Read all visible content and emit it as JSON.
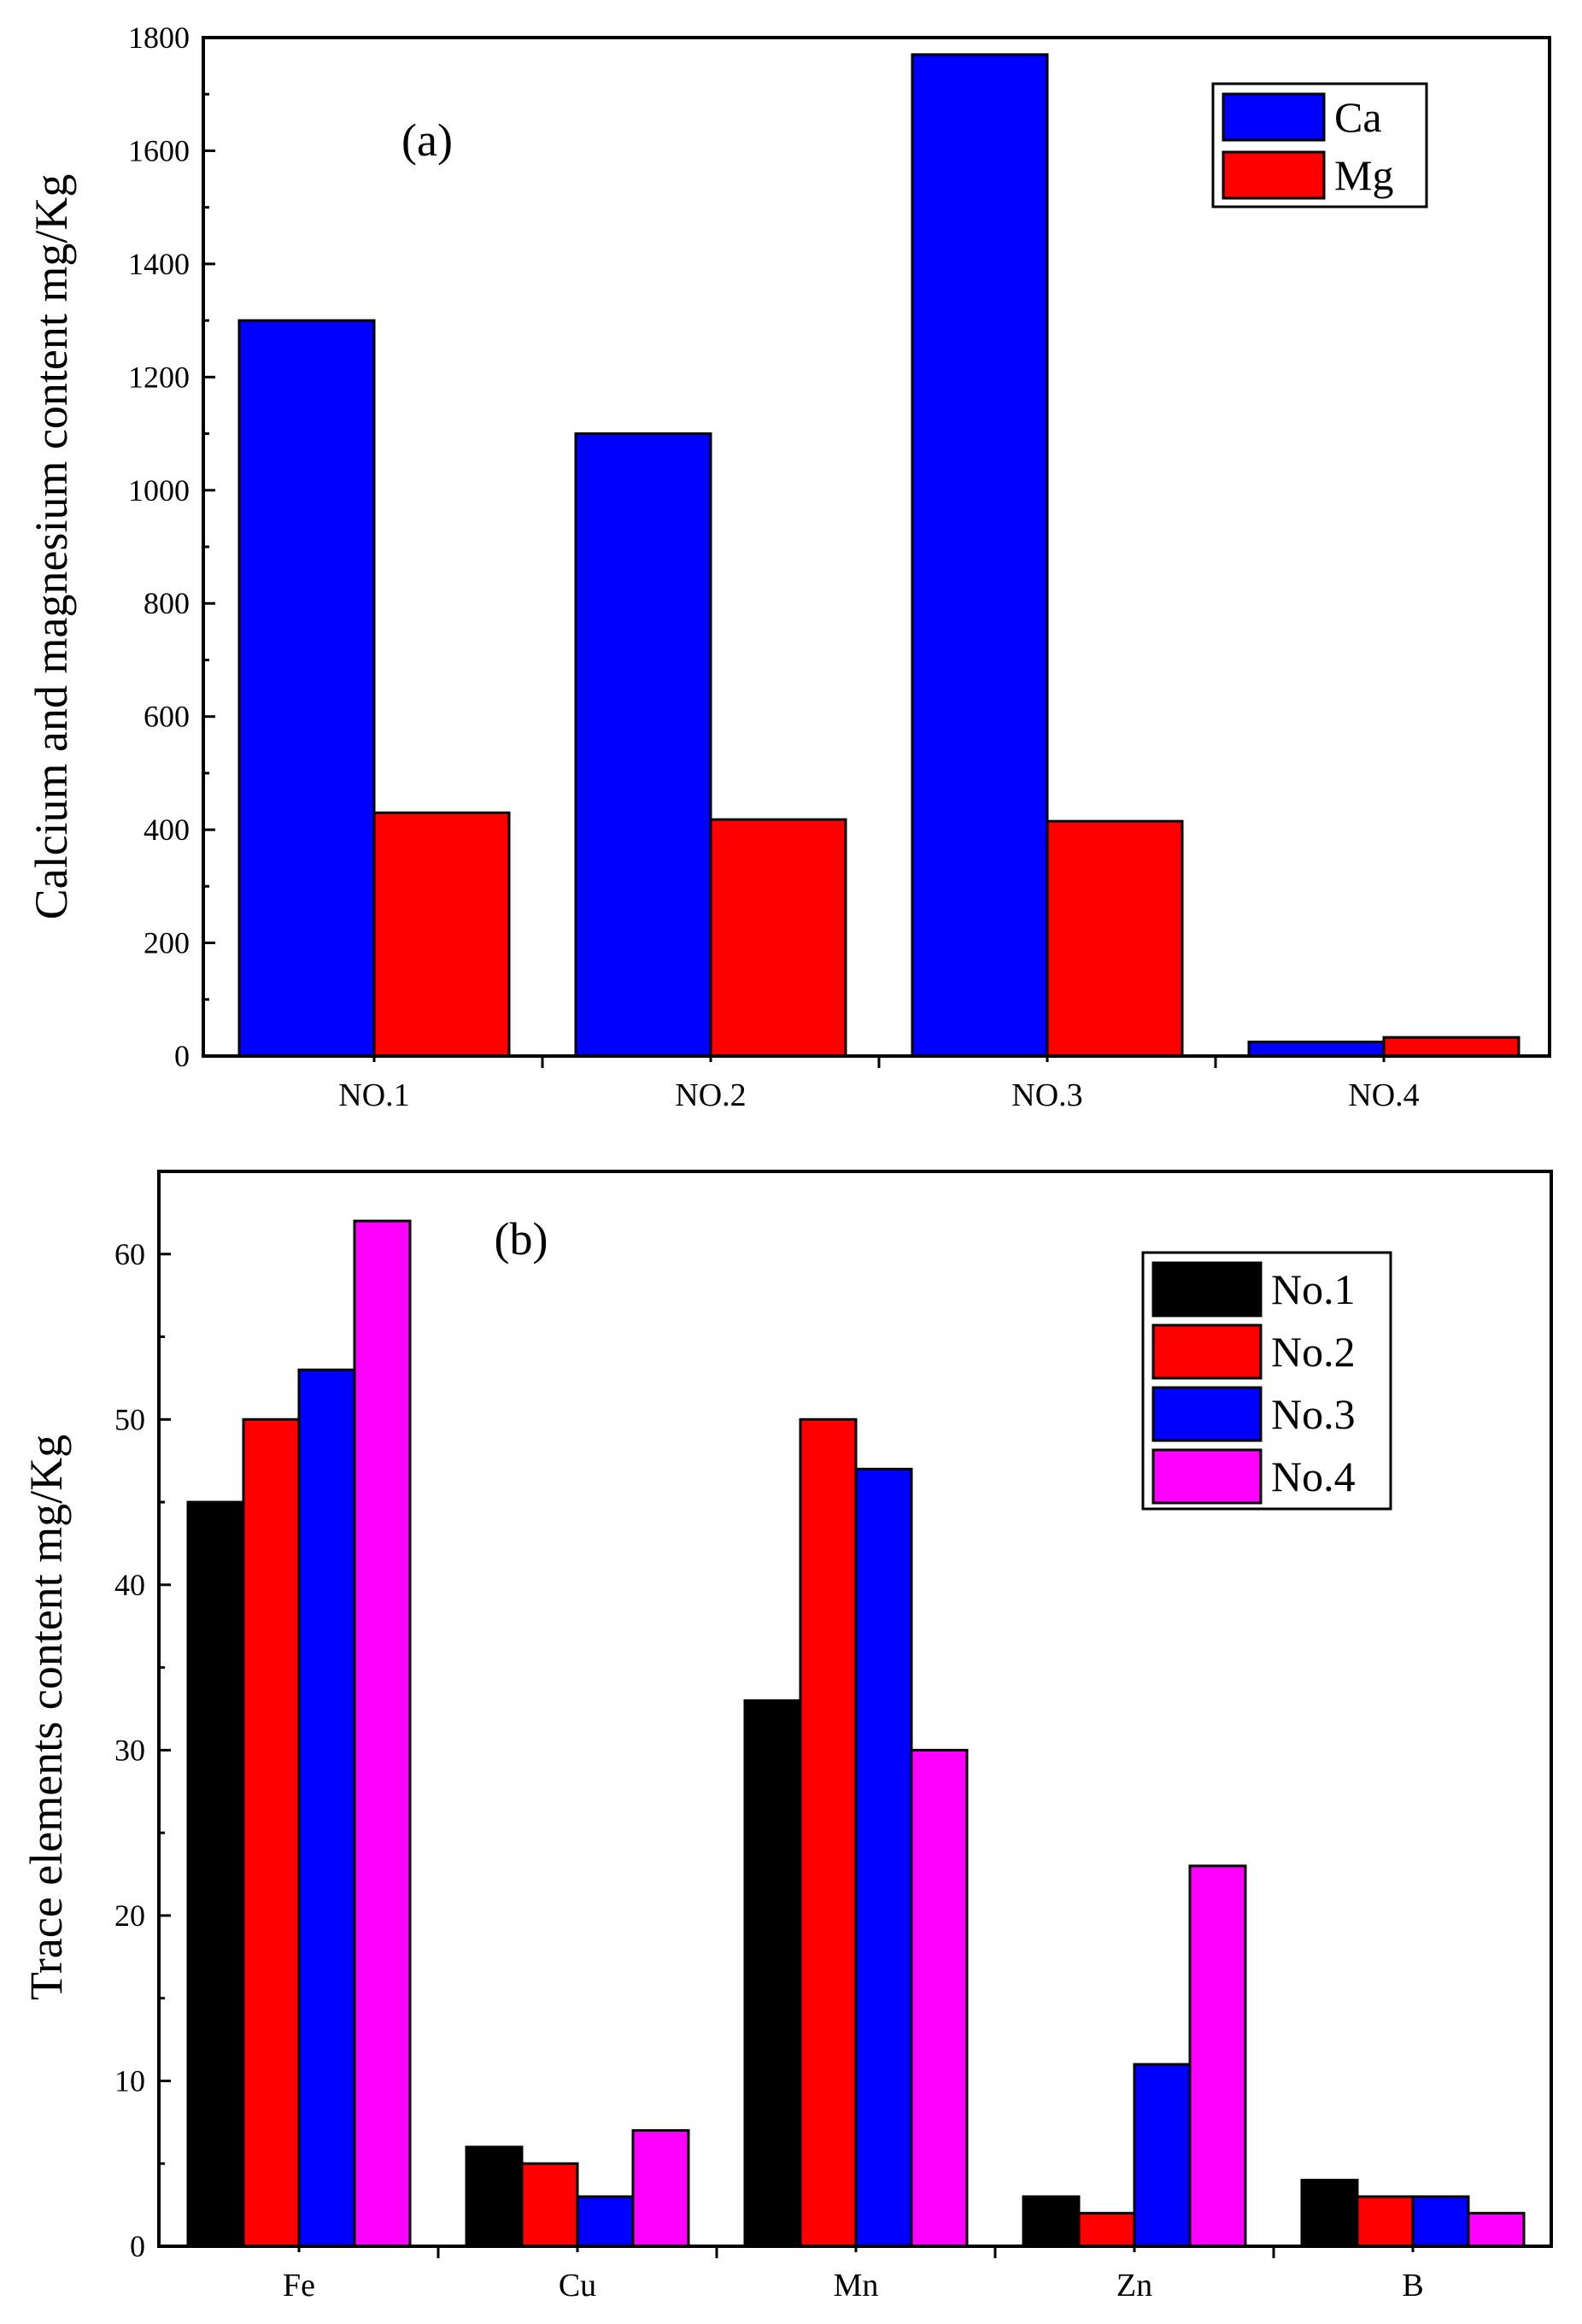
{
  "chart_data": [
    {
      "type": "bar",
      "panel_label": "(a)",
      "title": "",
      "xlabel": "",
      "ylabel": "Calcium and magnesium content mg/Kg",
      "ylim": [
        0,
        1800
      ],
      "yticks": [
        0,
        200,
        400,
        600,
        800,
        1000,
        1200,
        1400,
        1600,
        1800
      ],
      "grid": false,
      "legend_position": "top-right",
      "categories": [
        "NO.1",
        "NO.2",
        "NO.3",
        "NO.4"
      ],
      "series": [
        {
          "name": "Ca",
          "color": "#0000ff",
          "values": [
            1300,
            1100,
            1770,
            25
          ]
        },
        {
          "name": "Mg",
          "color": "#ff0000",
          "values": [
            430,
            418,
            415,
            33
          ]
        }
      ]
    },
    {
      "type": "bar",
      "panel_label": "(b)",
      "title": "",
      "xlabel": "",
      "ylabel": "Trace elements content mg/Kg",
      "ylim": [
        0,
        65
      ],
      "yticks": [
        0,
        10,
        20,
        30,
        40,
        50,
        60
      ],
      "grid": false,
      "legend_position": "top-right",
      "categories": [
        "Fe",
        "Cu",
        "Mn",
        "Zn",
        "B"
      ],
      "series": [
        {
          "name": "No.1",
          "color": "#000000",
          "values": [
            45,
            6,
            33,
            3,
            4
          ]
        },
        {
          "name": "No.2",
          "color": "#ff0000",
          "values": [
            50,
            5,
            50,
            2,
            3
          ]
        },
        {
          "name": "No.3",
          "color": "#0000ff",
          "values": [
            53,
            3,
            47,
            11,
            3
          ]
        },
        {
          "name": "No.4",
          "color": "#ff00ff",
          "values": [
            62,
            7,
            30,
            23,
            2
          ]
        }
      ]
    }
  ]
}
